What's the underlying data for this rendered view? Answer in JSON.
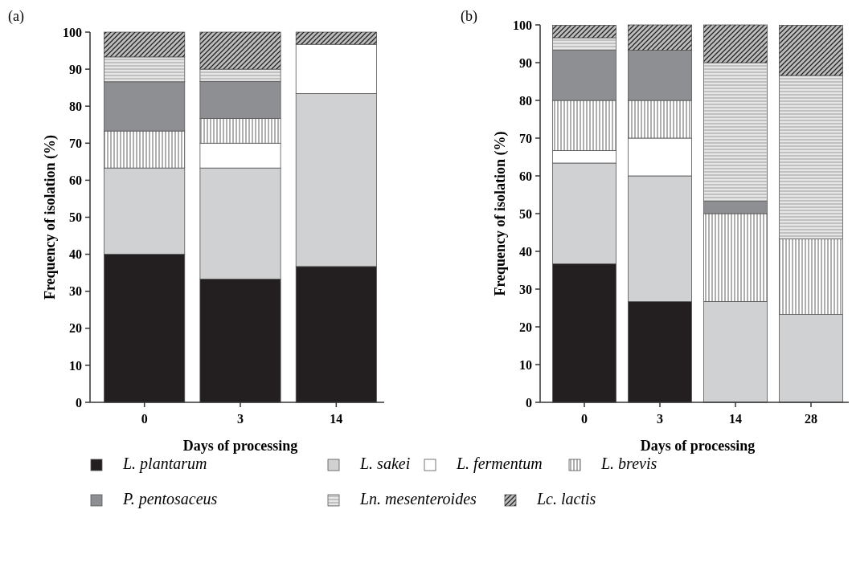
{
  "chart_data": [
    {
      "type": "bar",
      "title": "(a)",
      "xlabel": "Days of processing",
      "ylabel": "Frequency of isolation (%)",
      "categories": [
        "0",
        "3",
        "14"
      ],
      "stacked": true,
      "ylim": [
        0,
        100
      ],
      "yticks": [
        0,
        10,
        20,
        30,
        40,
        50,
        60,
        70,
        80,
        90,
        100
      ],
      "legend": "bottom",
      "series": [
        {
          "name": "L. plantarum",
          "color": "#231f20",
          "values": [
            40,
            33.3,
            36.7
          ]
        },
        {
          "name": "L. sakei",
          "color": "#d0d1d3",
          "values": [
            23.3,
            30,
            46.7
          ]
        },
        {
          "name": "L. fermentum",
          "color": "#ffffff",
          "values": [
            0,
            6.7,
            13.3
          ]
        },
        {
          "name": "L. brevis",
          "color": "#ffffff",
          "values": [
            10,
            6.7,
            0
          ]
        },
        {
          "name": "P. pentosaceus",
          "color": "#8e8f92",
          "values": [
            13.3,
            10,
            0
          ]
        },
        {
          "name": "Ln. mesenteroides",
          "color": "#e6e6e6",
          "values": [
            6.7,
            3.3,
            0
          ]
        },
        {
          "name": "Lc. lactis",
          "color": "#bdbdbd",
          "values": [
            6.7,
            10,
            3.3
          ]
        }
      ]
    },
    {
      "type": "bar",
      "title": "(b)",
      "xlabel": "Days of processing",
      "ylabel": "Frequency of isolation (%)",
      "categories": [
        "0",
        "3",
        "14",
        "28"
      ],
      "stacked": true,
      "ylim": [
        0,
        100
      ],
      "yticks": [
        0,
        10,
        20,
        30,
        40,
        50,
        60,
        70,
        80,
        90,
        100
      ],
      "series": [
        {
          "name": "L. plantarum",
          "color": "#231f20",
          "values": [
            36.7,
            26.7,
            0,
            0
          ]
        },
        {
          "name": "L. sakei",
          "color": "#d0d1d3",
          "values": [
            26.7,
            33.3,
            26.7,
            23.3
          ]
        },
        {
          "name": "L. fermentum",
          "color": "#ffffff",
          "values": [
            3.3,
            10,
            0,
            0
          ]
        },
        {
          "name": "L. brevis",
          "color": "#ffffff",
          "values": [
            13.3,
            10,
            23.3,
            20
          ]
        },
        {
          "name": "P. pentosaceus",
          "color": "#8e8f92",
          "values": [
            13.3,
            13.3,
            3.3,
            0
          ]
        },
        {
          "name": "Ln. mesenteroides",
          "color": "#e6e6e6",
          "values": [
            3.3,
            0,
            36.7,
            43.3
          ]
        },
        {
          "name": "Lc. lactis",
          "color": "#bdbdbd",
          "values": [
            3.3,
            6.7,
            10,
            13.3
          ]
        }
      ]
    }
  ]
}
